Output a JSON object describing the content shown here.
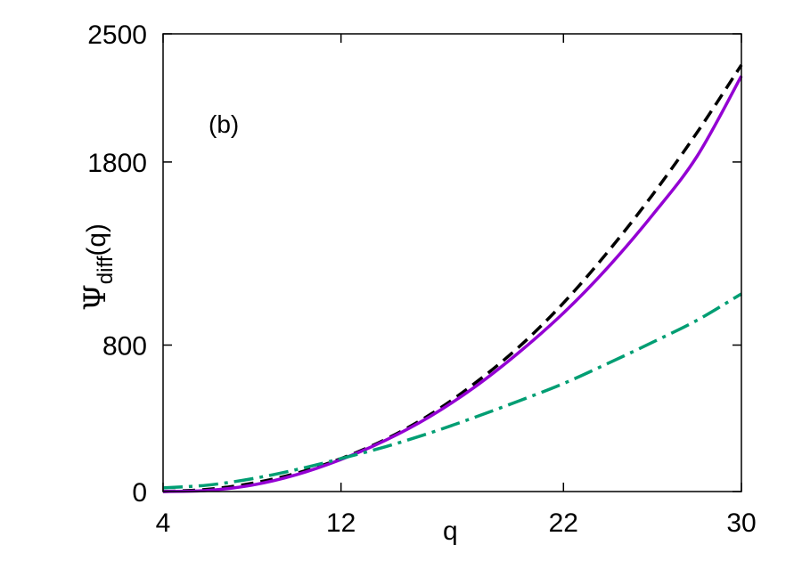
{
  "chart_data": {
    "type": "line",
    "panel_label": "(b)",
    "xlabel": "q",
    "ylabel": {
      "symbol": "Ψ",
      "subscript": "diff",
      "suffix": "(q)"
    },
    "xlim": [
      4,
      30
    ],
    "ylim": [
      0,
      2500
    ],
    "xticks": [
      4,
      12,
      22,
      30
    ],
    "yticks": [
      0,
      800,
      1800,
      2500
    ],
    "grid": false,
    "legend": "none",
    "series": [
      {
        "color": "#000000",
        "style": "dashed",
        "x": [
          4,
          6,
          8,
          10,
          12,
          14,
          16,
          18,
          20,
          22,
          24,
          26,
          28,
          30
        ],
        "y": [
          0,
          12,
          45,
          100,
          180,
          285,
          420,
          590,
          790,
          1030,
          1310,
          1620,
          1960,
          2330
        ]
      },
      {
        "color": "#9400d3",
        "style": "solid",
        "x": [
          4,
          6,
          8,
          10,
          12,
          14,
          16,
          18,
          20,
          22,
          24,
          26,
          28,
          30
        ],
        "y": [
          0,
          6,
          35,
          92,
          175,
          280,
          410,
          570,
          760,
          975,
          1225,
          1510,
          1830,
          2270
        ]
      },
      {
        "color": "#009e73",
        "style": "dashdot",
        "x": [
          4,
          6,
          8,
          10,
          12,
          14,
          16,
          18,
          20,
          22,
          24,
          26,
          28,
          30
        ],
        "y": [
          20,
          35,
          70,
          120,
          180,
          245,
          320,
          405,
          495,
          590,
          700,
          815,
          935,
          1080
        ]
      }
    ]
  }
}
